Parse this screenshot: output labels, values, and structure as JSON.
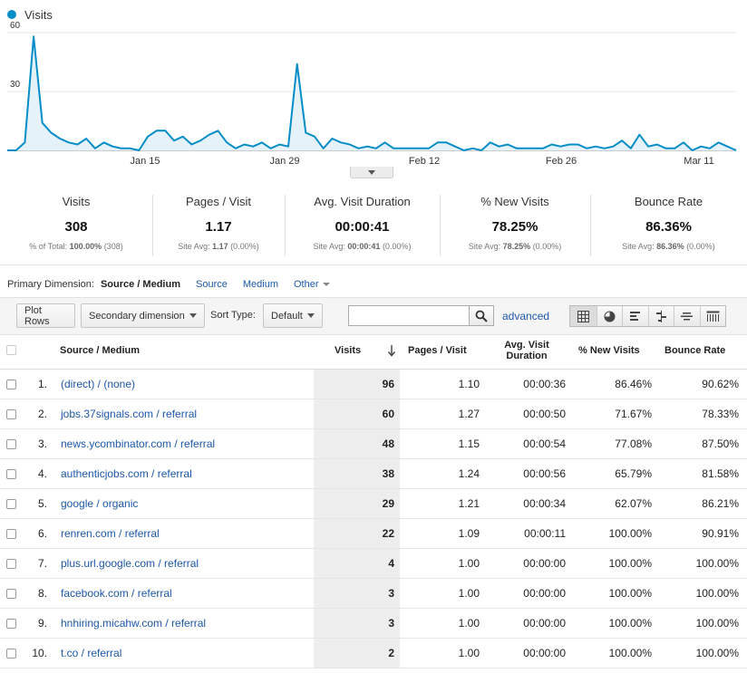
{
  "chart_data": {
    "type": "area",
    "series": [
      {
        "name": "Visits",
        "color": "#058dc7",
        "values": [
          0,
          0,
          4,
          58,
          14,
          9,
          6,
          4,
          3,
          6,
          1,
          4,
          2,
          1,
          1,
          0,
          7,
          10,
          10,
          5,
          7,
          3,
          5,
          8,
          10,
          4,
          1,
          3,
          2,
          4,
          1,
          3,
          2,
          44,
          9,
          7,
          1,
          6,
          4,
          3,
          1,
          2,
          1,
          4,
          1,
          1,
          1,
          1,
          1,
          4,
          4,
          2,
          0,
          1,
          0,
          4,
          2,
          3,
          1,
          1,
          1,
          1,
          3,
          2,
          3,
          3,
          1,
          2,
          1,
          2,
          5,
          1,
          8,
          2,
          3,
          1,
          1,
          4,
          0,
          2,
          1,
          4,
          2,
          0
        ]
      }
    ],
    "x_tick_labels": [
      "Jan 15",
      "Jan 29",
      "Feb 12",
      "Feb 26",
      "Mar 11"
    ],
    "y_tick_labels": [
      "30",
      "60"
    ],
    "ylim": [
      0,
      60
    ],
    "grid": true
  },
  "scorecards": [
    {
      "label": "Visits",
      "value": "308",
      "sub_prefix": "% of Total: ",
      "sub_bold": "100.00%",
      "sub_suffix": " (308)"
    },
    {
      "label": "Pages / Visit",
      "value": "1.17",
      "sub_prefix": "Site Avg: ",
      "sub_bold": "1.17",
      "sub_suffix": " (0.00%)"
    },
    {
      "label": "Avg. Visit Duration",
      "value": "00:00:41",
      "sub_prefix": "Site Avg: ",
      "sub_bold": "00:00:41",
      "sub_suffix": " (0.00%)"
    },
    {
      "label": "% New Visits",
      "value": "78.25%",
      "sub_prefix": "Site Avg: ",
      "sub_bold": "78.25%",
      "sub_suffix": " (0.00%)"
    },
    {
      "label": "Bounce Rate",
      "value": "86.36%",
      "sub_prefix": "Site Avg: ",
      "sub_bold": "86.36%",
      "sub_suffix": " (0.00%)"
    }
  ],
  "primary_dimension": {
    "label": "Primary Dimension:",
    "active": "Source / Medium",
    "source": "Source",
    "medium": "Medium",
    "other": "Other"
  },
  "toolbar": {
    "plot_rows": "Plot Rows",
    "secondary_dimension": "Secondary dimension",
    "sort_type_label": "Sort Type:",
    "sort_type_value": "Default",
    "search_value": "",
    "advanced": "advanced"
  },
  "table": {
    "headers": {
      "source_medium": "Source / Medium",
      "visits": "Visits",
      "pages_visit": "Pages / Visit",
      "avg_visit_duration": "Avg. Visit Duration",
      "new_visits": "% New Visits",
      "bounce_rate": "Bounce Rate"
    },
    "rows": [
      {
        "index": "1.",
        "source": "(direct) / (none)",
        "visits": "96",
        "pages": "1.10",
        "duration": "00:00:36",
        "new_visits": "86.46%",
        "bounce": "90.62%"
      },
      {
        "index": "2.",
        "source": "jobs.37signals.com / referral",
        "visits": "60",
        "pages": "1.27",
        "duration": "00:00:50",
        "new_visits": "71.67%",
        "bounce": "78.33%"
      },
      {
        "index": "3.",
        "source": "news.ycombinator.com / referral",
        "visits": "48",
        "pages": "1.15",
        "duration": "00:00:54",
        "new_visits": "77.08%",
        "bounce": "87.50%"
      },
      {
        "index": "4.",
        "source": "authenticjobs.com / referral",
        "visits": "38",
        "pages": "1.24",
        "duration": "00:00:56",
        "new_visits": "65.79%",
        "bounce": "81.58%"
      },
      {
        "index": "5.",
        "source": "google / organic",
        "visits": "29",
        "pages": "1.21",
        "duration": "00:00:34",
        "new_visits": "62.07%",
        "bounce": "86.21%"
      },
      {
        "index": "6.",
        "source": "renren.com / referral",
        "visits": "22",
        "pages": "1.09",
        "duration": "00:00:11",
        "new_visits": "100.00%",
        "bounce": "90.91%"
      },
      {
        "index": "7.",
        "source": "plus.url.google.com / referral",
        "visits": "4",
        "pages": "1.00",
        "duration": "00:00:00",
        "new_visits": "100.00%",
        "bounce": "100.00%"
      },
      {
        "index": "8.",
        "source": "facebook.com / referral",
        "visits": "3",
        "pages": "1.00",
        "duration": "00:00:00",
        "new_visits": "100.00%",
        "bounce": "100.00%"
      },
      {
        "index": "9.",
        "source": "hnhiring.micahw.com / referral",
        "visits": "3",
        "pages": "1.00",
        "duration": "00:00:00",
        "new_visits": "100.00%",
        "bounce": "100.00%"
      },
      {
        "index": "10.",
        "source": "t.co / referral",
        "visits": "2",
        "pages": "1.00",
        "duration": "00:00:00",
        "new_visits": "100.00%",
        "bounce": "100.00%"
      }
    ]
  }
}
